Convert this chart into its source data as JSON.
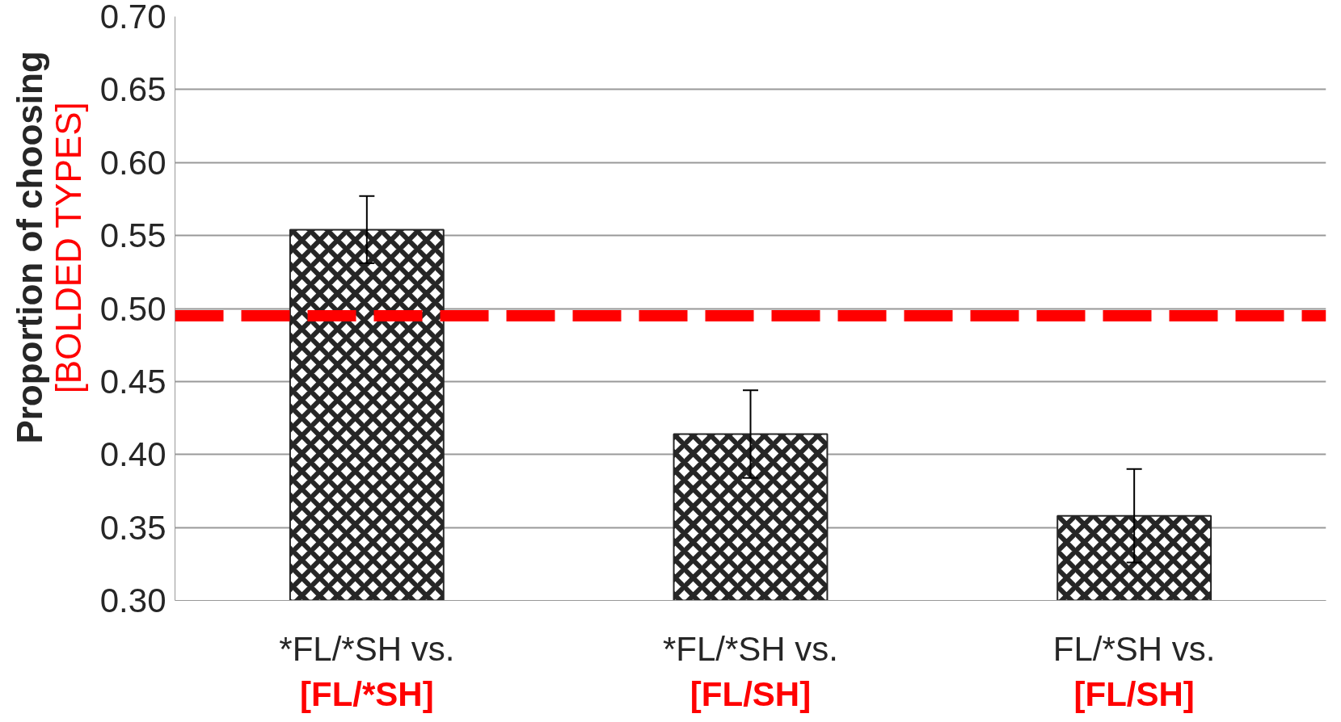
{
  "chart_data": {
    "type": "bar",
    "ylabel": "Proportion of choosing\n[BOLDED TYPES]",
    "categories": [
      "*FL/*SH vs.\n[FL/*SH]",
      "*FL/*SH vs.\n[FL/SH]",
      "FL/*SH vs.\n[FL/SH]"
    ],
    "values": [
      0.554,
      0.414,
      0.358
    ],
    "errors": [
      0.023,
      0.03,
      0.032
    ],
    "color": "#262626",
    "ylim": [
      0.3,
      0.7
    ],
    "yticks": [
      {
        "value": 0.3,
        "label": "0.30"
      },
      {
        "value": 0.35,
        "label": "0.35"
      },
      {
        "value": 0.4,
        "label": "0.40"
      },
      {
        "value": 0.45,
        "label": "0.45"
      },
      {
        "value": 0.5,
        "label": "0.50"
      },
      {
        "value": 0.55,
        "label": "0.55"
      },
      {
        "value": 0.6,
        "label": "0.60"
      },
      {
        "value": 0.65,
        "label": "0.65"
      },
      {
        "value": 0.7,
        "label": "0.70"
      }
    ],
    "ref_lines": [
      {
        "axis": "y",
        "value": 0.495,
        "color": "#ff0000",
        "line_style": "dashed"
      }
    ],
    "grid": "y"
  }
}
